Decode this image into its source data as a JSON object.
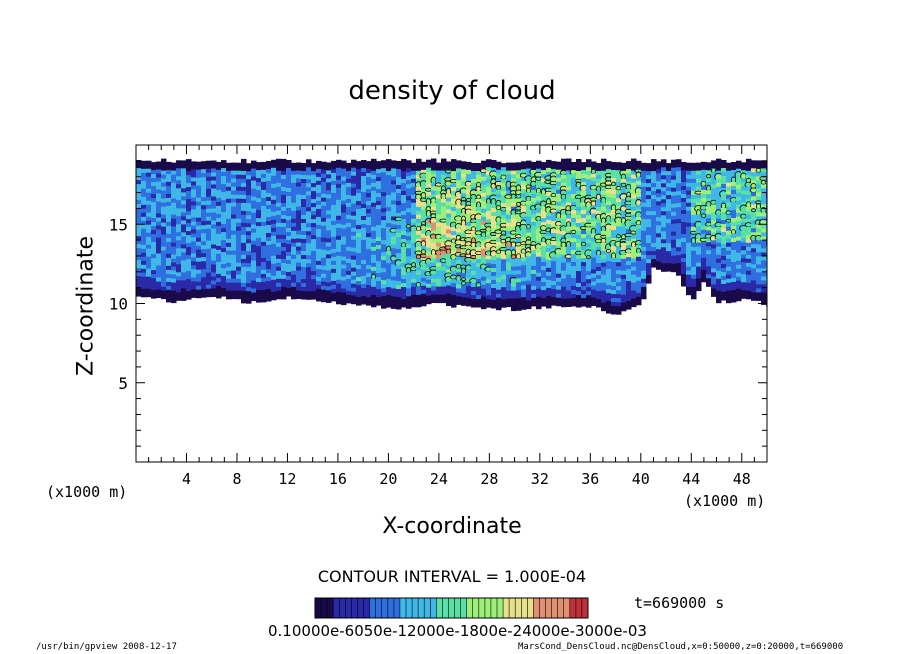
{
  "chart_data": {
    "type": "heatmap",
    "title": "density of cloud",
    "xlabel": "X-coordinate",
    "ylabel": "Z-coordinate",
    "x_unit_label_left": "(x1000 m)",
    "x_unit_label_right": "(x1000 m)",
    "xlim": [
      0,
      50
    ],
    "ylim": [
      0,
      20
    ],
    "x_ticks": [
      "4",
      "8",
      "12",
      "16",
      "20",
      "24",
      "28",
      "32",
      "36",
      "40",
      "44",
      "48"
    ],
    "y_ticks": [
      "5",
      "10",
      "15"
    ],
    "cloud_layer": {
      "base_z": [
        [
          0,
          10.6
        ],
        [
          3,
          10.3
        ],
        [
          6,
          10.6
        ],
        [
          9,
          10.2
        ],
        [
          12,
          10.5
        ],
        [
          15,
          10.3
        ],
        [
          18,
          10.0
        ],
        [
          21,
          9.9
        ],
        [
          24,
          10.1
        ],
        [
          27,
          9.9
        ],
        [
          30,
          9.8
        ],
        [
          33,
          9.9
        ],
        [
          36,
          10.0
        ],
        [
          38,
          9.4
        ],
        [
          40,
          10.0
        ],
        [
          41,
          12.3
        ],
        [
          43,
          12.0
        ],
        [
          44,
          10.3
        ],
        [
          45,
          11.6
        ],
        [
          46,
          10.2
        ],
        [
          48,
          10.4
        ],
        [
          50,
          10.1
        ]
      ],
      "top_z": 19.0,
      "high_density_region_x": [
        22,
        40
      ],
      "high_density_secondary_x": [
        44,
        50
      ]
    },
    "contour_interval": "CONTOUR INTERVAL = 1.000E-04",
    "time_label": "t=669000 s",
    "colorbar_tick_labels": "0.10000e-6050e-12000e-1800e-24000e-3000e-03",
    "colors": [
      "#1a0a4a",
      "#2a2aa8",
      "#2f6fe0",
      "#3fb8e8",
      "#59e0a8",
      "#9cf07a",
      "#e8e08a",
      "#e09070",
      "#c0303a"
    ]
  },
  "footer": {
    "left": "/usr/bin/gpview   2008-12-17",
    "right": "MarsCond_DensCloud.nc@DensCloud,x=0:50000,z=0:20000,t=669000"
  }
}
